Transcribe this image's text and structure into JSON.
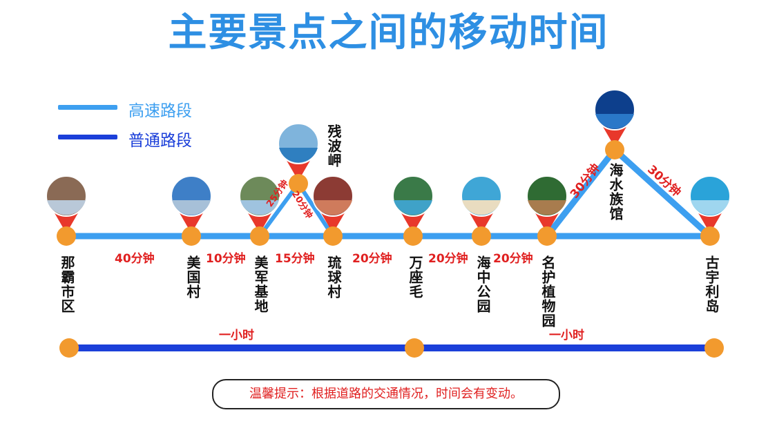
{
  "title": "主要景点之间的移动时间",
  "legend": {
    "highway": {
      "label": "高速路段",
      "color": "#3d9ff0"
    },
    "normal": {
      "label": "普通路段",
      "color": "#1b3fd9"
    }
  },
  "colors": {
    "node": "#f29a2e",
    "pin": "#e8382b",
    "time_text": "#e02020"
  },
  "places": [
    "那霸市区",
    "美国村",
    "美军基地",
    "琉球村",
    "万座毛",
    "海中公园",
    "名护植物园",
    "古宇利岛",
    "残波岬",
    "海水族馆"
  ],
  "times": {
    "t1": "40分钟",
    "t2": "10分钟",
    "t3": "15分钟",
    "t4": "20分钟",
    "t5": "20分钟",
    "t6": "20分钟",
    "t7": "25分钟",
    "t8": "20分钟",
    "t9": "30分钟",
    "t10": "30分钟"
  },
  "hour_labels": [
    "一小时",
    "一小时"
  ],
  "tip": "温馨提示：根据道路的交通情况，时间会有变动。"
}
